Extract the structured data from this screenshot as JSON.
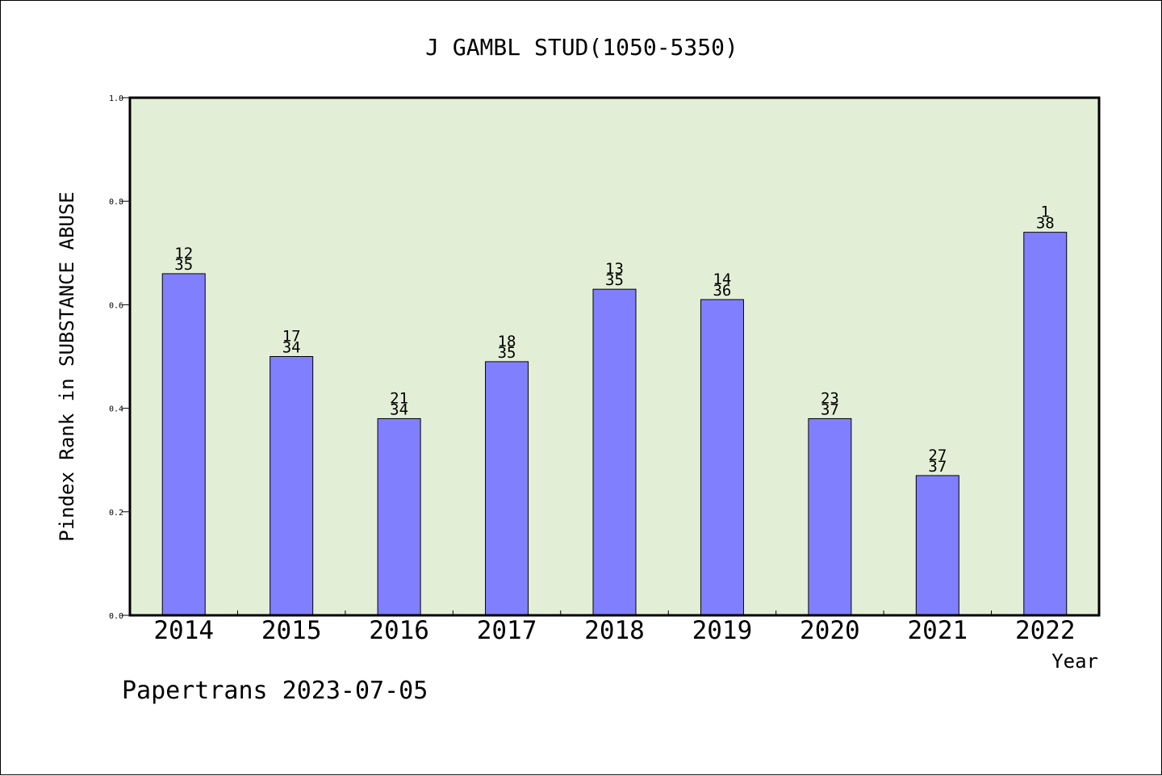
{
  "chart_data": {
    "type": "bar",
    "title": "J GAMBL STUD(1050-5350)",
    "xlabel": "Year",
    "ylabel": "Pindex Rank in SUBSTANCE ABUSE",
    "categories": [
      "2014",
      "2015",
      "2016",
      "2017",
      "2018",
      "2019",
      "2020",
      "2021",
      "2022"
    ],
    "values": [
      0.66,
      0.5,
      0.38,
      0.49,
      0.63,
      0.61,
      0.38,
      0.27,
      0.74
    ],
    "bar_labels": [
      [
        "12",
        "35"
      ],
      [
        "17",
        "34"
      ],
      [
        "21",
        "34"
      ],
      [
        "18",
        "35"
      ],
      [
        "13",
        "35"
      ],
      [
        "14",
        "36"
      ],
      [
        "23",
        "37"
      ],
      [
        "27",
        "37"
      ],
      [
        "1",
        "38"
      ]
    ],
    "ylim": [
      0.0,
      1.0
    ],
    "yticks": [
      "0.0",
      "0.2",
      "0.4",
      "0.6",
      "0.8",
      "1.0"
    ],
    "grid": false,
    "plot_background": "#e2efd6",
    "bar_color": "#8080ff"
  },
  "footer": "Papertrans 2023-07-05"
}
